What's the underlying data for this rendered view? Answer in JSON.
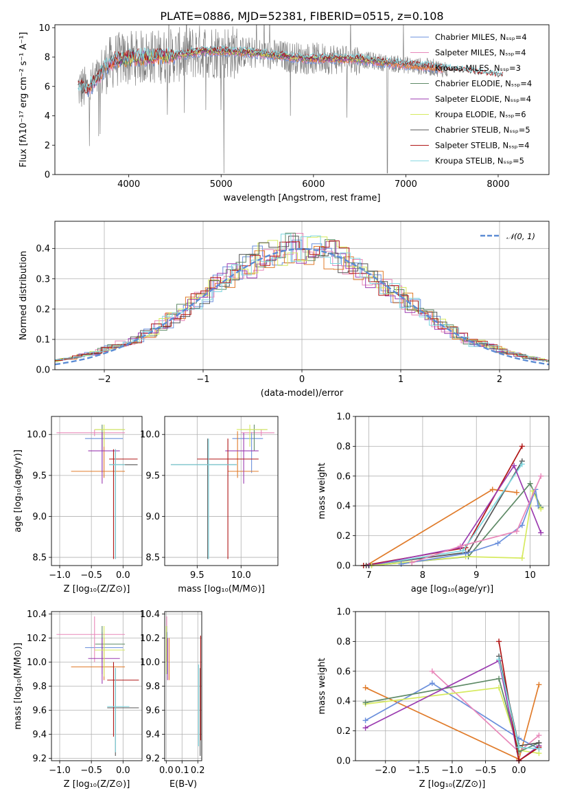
{
  "title": "PLATE=0886, MJD=52381, FIBERID=0515, z=0.108",
  "colors": {
    "chabrier_miles": "#6a8fdc",
    "salpeter_miles": "#e887b9",
    "kroupa_miles": "#e07b2a",
    "chabrier_elodie": "#5e8a66",
    "salpeter_elodie": "#9b3bb0",
    "kroupa_elodie": "#d6ea5e",
    "chabrier_stelib": "#555555",
    "salpeter_stelib": "#b01515",
    "kroupa_stelib": "#7fd7e0",
    "data": "#808080",
    "normal": "#5b8bd4"
  },
  "chart_data": [
    {
      "id": "spectrum",
      "type": "line",
      "xlabel": "wavelength [Angstrom, rest frame]",
      "ylabel": "Flux [fλ10⁻¹⁷ erg cm⁻² s⁻¹ A⁻¹]",
      "xlim": [
        3200,
        8550
      ],
      "ylim": [
        0,
        10.2
      ],
      "xticks": [
        "4000",
        "5000",
        "6000",
        "7000",
        "8000"
      ],
      "yticks": [
        "0",
        "2",
        "4",
        "6",
        "8",
        "10"
      ],
      "grid": false,
      "legend_position": "top-right",
      "legend": [
        "Chabrier MILES, Nₛₛₚ=4",
        "Salpeter MILES, Nₛₛₚ=4",
        "Kroupa MILES, Nₛₛₚ=3",
        "Chabrier ELODIE, Nₛₛₚ=4",
        "Salpeter ELODIE, Nₛₛₚ=4",
        "Kroupa ELODIE, Nₛₛₚ=6",
        "Chabrier STELIB, Nₛₛₚ=5",
        "Salpeter STELIB, Nₛₛₚ=4",
        "Kroupa STELIB, Nₛₛₚ=5"
      ],
      "continuum": {
        "x": [
          3450,
          3550,
          3650,
          3750,
          3850,
          4000,
          4200,
          4500,
          4800,
          5000,
          5300,
          5600,
          5900,
          6200,
          6500,
          6800,
          7100,
          7300,
          7500,
          7700,
          8000,
          8300
        ],
        "y": [
          5.9,
          5.8,
          6.4,
          7.3,
          7.8,
          7.9,
          8.0,
          8.1,
          8.4,
          8.4,
          8.3,
          8.1,
          7.9,
          7.9,
          7.85,
          7.6,
          7.4,
          7.3,
          7.1,
          6.95,
          6.7,
          6.5
        ]
      }
    },
    {
      "id": "residuals",
      "type": "histogram",
      "xlabel": "(data-model)/error",
      "ylabel": "Normed distribution",
      "xlim": [
        -2.5,
        2.5
      ],
      "ylim": [
        0,
        0.49
      ],
      "xticks": [
        "−2",
        "−1",
        "0",
        "1",
        "2"
      ],
      "yticks": [
        "0.0",
        "0.1",
        "0.2",
        "0.3",
        "0.4"
      ],
      "grid": true,
      "legend": [
        "𝒩(0, 1)"
      ],
      "bin_width": 0.1
    },
    {
      "id": "age_vs_Z",
      "type": "errorbar",
      "xlabel": "Z [log₁₀(Z/Z⊙)]",
      "ylabel": "age  [log₁₀(age/yr)]",
      "xlim": [
        -1.13,
        0.3
      ],
      "ylim": [
        8.4,
        10.22
      ],
      "xticks": [
        "−1.0",
        "−0.5",
        "0.0"
      ],
      "yticks": [
        "8.5",
        "9.0",
        "9.5",
        "10.0"
      ],
      "grid": true,
      "points": [
        {
          "c": "chabrier_miles",
          "x": -0.33,
          "xe": [
            -0.6,
            -0.0
          ],
          "y": 9.95,
          "ye": [
            9.53,
            10.03
          ]
        },
        {
          "c": "salpeter_miles",
          "x": -0.45,
          "xe": [
            -1.05,
            0.03
          ],
          "y": 10.02,
          "ye": [
            9.98,
            10.06
          ]
        },
        {
          "c": "kroupa_miles",
          "x": -0.3,
          "xe": [
            -0.82,
            0.03
          ],
          "y": 9.55,
          "ye": [
            9.47,
            10.04
          ]
        },
        {
          "c": "chabrier_elodie",
          "x": -0.33,
          "xe": [
            -0.44,
            0.03
          ],
          "y": 10.06,
          "ye": [
            9.8,
            10.12
          ]
        },
        {
          "c": "salpeter_elodie",
          "x": -0.33,
          "xe": [
            -0.55,
            -0.05
          ],
          "y": 9.8,
          "ye": [
            9.4,
            10.02
          ]
        },
        {
          "c": "kroupa_elodie",
          "x": -0.3,
          "xe": [
            -0.45,
            0.03
          ],
          "y": 10.06,
          "ye": [
            9.85,
            10.12
          ]
        },
        {
          "c": "chabrier_stelib",
          "x": -0.12,
          "xe": [
            -0.22,
            0.23
          ],
          "y": 9.63,
          "ye": [
            8.48,
            9.82
          ]
        },
        {
          "c": "salpeter_stelib",
          "x": -0.15,
          "xe": [
            -0.22,
            0.23
          ],
          "y": 9.7,
          "ye": [
            8.48,
            9.82
          ]
        },
        {
          "c": "kroupa_stelib",
          "x": -0.12,
          "xe": [
            -0.22,
            0.03
          ],
          "y": 9.63,
          "ye": [
            8.48,
            9.82
          ]
        }
      ]
    },
    {
      "id": "age_vs_mass",
      "type": "errorbar",
      "xlabel": "mass [log₁₀(M/M⊙)]",
      "ylabel": "",
      "xlim": [
        9.13,
        10.42
      ],
      "ylim": [
        8.4,
        10.22
      ],
      "xticks": [
        "9.5",
        "10.0"
      ],
      "yticks": [
        "8.5",
        "9.0",
        "9.5",
        "10.0"
      ],
      "grid": true,
      "points": [
        {
          "c": "chabrier_miles",
          "x": 10.12,
          "xe": [
            9.9,
            10.25
          ],
          "y": 9.95,
          "ye": [
            9.53,
            10.03
          ]
        },
        {
          "c": "salpeter_miles",
          "x": 10.23,
          "xe": [
            10.0,
            10.38
          ],
          "y": 10.02,
          "ye": [
            9.98,
            10.06
          ]
        },
        {
          "c": "kroupa_miles",
          "x": 9.96,
          "xe": [
            9.85,
            10.2
          ],
          "y": 9.55,
          "ye": [
            9.47,
            10.04
          ]
        },
        {
          "c": "chabrier_elodie",
          "x": 10.15,
          "xe": [
            10.0,
            10.3
          ],
          "y": 10.06,
          "ye": [
            9.8,
            10.12
          ]
        },
        {
          "c": "salpeter_elodie",
          "x": 10.03,
          "xe": [
            9.82,
            10.2
          ],
          "y": 9.8,
          "ye": [
            9.4,
            10.02
          ]
        },
        {
          "c": "kroupa_elodie",
          "x": 10.1,
          "xe": [
            9.95,
            10.3
          ],
          "y": 10.06,
          "ye": [
            9.85,
            10.12
          ]
        },
        {
          "c": "chabrier_stelib",
          "x": 9.62,
          "xe": [
            9.2,
            9.95
          ],
          "y": 9.63,
          "ye": [
            8.48,
            9.95
          ]
        },
        {
          "c": "salpeter_stelib",
          "x": 9.85,
          "xe": [
            9.5,
            10.2
          ],
          "y": 9.7,
          "ye": [
            8.48,
            9.95
          ]
        },
        {
          "c": "kroupa_stelib",
          "x": 9.63,
          "xe": [
            9.2,
            9.95
          ],
          "y": 9.63,
          "ye": [
            8.48,
            9.95
          ]
        }
      ]
    },
    {
      "id": "massweight_vs_age",
      "type": "line",
      "xlabel": "age  [log₁₀(age/yr)]",
      "ylabel": "mass weight",
      "xlim": [
        6.75,
        10.35
      ],
      "ylim": [
        0,
        1.0
      ],
      "xticks": [
        "7",
        "8",
        "9",
        "10"
      ],
      "yticks": [
        "0.0",
        "0.2",
        "0.4",
        "0.6",
        "0.8",
        "1.0"
      ],
      "grid": true,
      "series": [
        {
          "c": "kroupa_miles",
          "x": [
            6.95,
            9.3,
            9.75
          ],
          "y": [
            0.0,
            0.51,
            0.49
          ]
        },
        {
          "c": "salpeter_stelib",
          "x": [
            6.9,
            8.8,
            9.85
          ],
          "y": [
            0.0,
            0.12,
            0.8
          ]
        },
        {
          "c": "chabrier_stelib",
          "x": [
            6.95,
            8.85,
            9.85
          ],
          "y": [
            0.0,
            0.09,
            0.7
          ]
        },
        {
          "c": "kroupa_stelib",
          "x": [
            7.0,
            8.75,
            9.85
          ],
          "y": [
            0.0,
            0.1,
            0.68
          ]
        },
        {
          "c": "salpeter_elodie",
          "x": [
            7.0,
            8.7,
            9.7,
            10.2
          ],
          "y": [
            0.0,
            0.12,
            0.67,
            0.22
          ]
        },
        {
          "c": "chabrier_elodie",
          "x": [
            7.05,
            8.85,
            10.0,
            10.2
          ],
          "y": [
            0.0,
            0.06,
            0.55,
            0.39
          ]
        },
        {
          "c": "kroupa_elodie",
          "x": [
            7.05,
            8.8,
            9.85,
            10.05,
            10.2
          ],
          "y": [
            0.0,
            0.06,
            0.05,
            0.5,
            0.38
          ]
        },
        {
          "c": "chabrier_miles",
          "x": [
            7.6,
            8.8,
            9.4,
            9.85,
            10.1,
            10.15
          ],
          "y": [
            0.01,
            0.08,
            0.15,
            0.27,
            0.51,
            0.4
          ]
        },
        {
          "c": "salpeter_miles",
          "x": [
            7.8,
            8.7,
            9.75,
            10.2
          ],
          "y": [
            0.02,
            0.13,
            0.23,
            0.6
          ]
        }
      ]
    },
    {
      "id": "mass_vs_Z",
      "type": "errorbar",
      "xlabel": "Z [log₁₀(Z/Z⊙)]",
      "ylabel": "mass [log₁₀(M/M⊙)]",
      "xlim": [
        -1.13,
        0.3
      ],
      "ylim": [
        9.18,
        10.42
      ],
      "xticks": [
        "−1.0",
        "−0.5",
        "0.0"
      ],
      "yticks": [
        "9.2",
        "9.4",
        "9.6",
        "9.8",
        "10.0",
        "10.2",
        "10.4"
      ],
      "grid": true,
      "points": [
        {
          "c": "chabrier_miles",
          "x": -0.33,
          "xe": [
            -0.6,
            -0.0
          ],
          "y": 10.12,
          "ye": [
            9.9,
            10.25
          ]
        },
        {
          "c": "salpeter_miles",
          "x": -0.45,
          "xe": [
            -1.05,
            0.03
          ],
          "y": 10.23,
          "ye": [
            10.0,
            10.38
          ]
        },
        {
          "c": "kroupa_miles",
          "x": -0.3,
          "xe": [
            -0.82,
            0.03
          ],
          "y": 9.96,
          "ye": [
            9.85,
            10.2
          ]
        },
        {
          "c": "chabrier_elodie",
          "x": -0.33,
          "xe": [
            -0.44,
            0.03
          ],
          "y": 10.15,
          "ye": [
            10.0,
            10.3
          ]
        },
        {
          "c": "salpeter_elodie",
          "x": -0.33,
          "xe": [
            -0.55,
            -0.05
          ],
          "y": 10.03,
          "ye": [
            9.82,
            10.2
          ]
        },
        {
          "c": "kroupa_elodie",
          "x": -0.3,
          "xe": [
            -0.45,
            0.03
          ],
          "y": 10.1,
          "ye": [
            9.88,
            10.3
          ]
        },
        {
          "c": "chabrier_stelib",
          "x": -0.12,
          "xe": [
            -0.25,
            0.25
          ],
          "y": 9.62,
          "ye": [
            9.22,
            9.95
          ]
        },
        {
          "c": "salpeter_stelib",
          "x": -0.15,
          "xe": [
            -0.25,
            0.25
          ],
          "y": 9.85,
          "ye": [
            9.38,
            10.0
          ]
        },
        {
          "c": "kroupa_stelib",
          "x": -0.12,
          "xe": [
            -0.25,
            0.1
          ],
          "y": 9.63,
          "ye": [
            9.25,
            9.95
          ]
        }
      ]
    },
    {
      "id": "mass_vs_ebv",
      "type": "errorbar",
      "xlabel": "E(B-V)",
      "ylabel": "",
      "xlim": [
        -0.01,
        0.225
      ],
      "ylim": [
        9.18,
        10.42
      ],
      "xticks": [
        "0.0",
        "0.1",
        "0.2"
      ],
      "yticks": [
        "9.2",
        "9.4",
        "9.6",
        "9.8",
        "10.0",
        "10.2",
        "10.4"
      ],
      "grid": true,
      "points": [
        {
          "c": "chabrier_miles",
          "x": 0.005,
          "xe": [
            0.005,
            0.005
          ],
          "y": 10.12,
          "ye": [
            9.9,
            10.25
          ]
        },
        {
          "c": "salpeter_miles",
          "x": 0.003,
          "xe": [
            0.003,
            0.003
          ],
          "y": 10.23,
          "ye": [
            10.0,
            10.38
          ]
        },
        {
          "c": "kroupa_miles",
          "x": 0.018,
          "xe": [
            0.018,
            0.018
          ],
          "y": 9.96,
          "ye": [
            9.85,
            10.2
          ]
        },
        {
          "c": "chabrier_elodie",
          "x": 0.002,
          "xe": [
            0.002,
            0.002
          ],
          "y": 10.15,
          "ye": [
            10.0,
            10.3
          ]
        },
        {
          "c": "salpeter_elodie",
          "x": 0.008,
          "xe": [
            0.008,
            0.008
          ],
          "y": 10.03,
          "ye": [
            9.85,
            10.2
          ]
        },
        {
          "c": "kroupa_elodie",
          "x": 0.0,
          "xe": [
            0.0,
            0.0
          ],
          "y": 10.1,
          "ye": [
            9.9,
            10.3
          ]
        },
        {
          "c": "chabrier_stelib",
          "x": 0.215,
          "xe": [
            0.215,
            0.215
          ],
          "y": 9.62,
          "ye": [
            9.22,
            9.95
          ]
        },
        {
          "c": "salpeter_stelib",
          "x": 0.218,
          "xe": [
            0.218,
            0.218
          ],
          "y": 9.85,
          "ye": [
            9.35,
            10.22
          ]
        },
        {
          "c": "kroupa_stelib",
          "x": 0.205,
          "xe": [
            0.205,
            0.205
          ],
          "y": 9.63,
          "ye": [
            9.3,
            9.98
          ]
        }
      ]
    },
    {
      "id": "massweight_vs_Z",
      "type": "line",
      "xlabel": "Z [log₁₀(Z/Z⊙)]",
      "ylabel": "mass weight",
      "xlim": [
        -2.45,
        0.45
      ],
      "ylim": [
        0,
        1.0
      ],
      "xticks": [
        "−2.0",
        "−1.5",
        "−1.0",
        "−0.5",
        "0.0"
      ],
      "yticks": [
        "0.0",
        "0.2",
        "0.4",
        "0.6",
        "0.8",
        "1.0"
      ],
      "grid": true,
      "series": [
        {
          "c": "kroupa_miles",
          "x": [
            -2.3,
            0.0,
            0.3
          ],
          "y": [
            0.49,
            0.01,
            0.51
          ]
        },
        {
          "c": "chabrier_miles",
          "x": [
            -2.3,
            -1.3,
            0.0,
            0.3
          ],
          "y": [
            0.27,
            0.52,
            0.15,
            0.08
          ]
        },
        {
          "c": "salpeter_miles",
          "x": [
            -1.3,
            0.0,
            0.3
          ],
          "y": [
            0.6,
            0.06,
            0.17
          ]
        },
        {
          "c": "kroupa_elodie",
          "x": [
            -2.3,
            -0.3,
            0.0,
            0.3
          ],
          "y": [
            0.38,
            0.49,
            0.07,
            0.05
          ]
        },
        {
          "c": "chabrier_elodie",
          "x": [
            -2.3,
            -0.3,
            0.0,
            0.3
          ],
          "y": [
            0.39,
            0.55,
            0.06,
            0.12
          ]
        },
        {
          "c": "salpeter_elodie",
          "x": [
            -2.3,
            -0.3,
            0.0,
            0.3
          ],
          "y": [
            0.22,
            0.67,
            0.0,
            0.1
          ]
        },
        {
          "c": "salpeter_stelib",
          "x": [
            -0.3,
            0.0,
            0.3
          ],
          "y": [
            0.8,
            0.0,
            0.09
          ]
        },
        {
          "c": "chabrier_stelib",
          "x": [
            -0.3,
            0.0,
            0.3
          ],
          "y": [
            0.7,
            0.1,
            0.12
          ]
        },
        {
          "c": "kroupa_stelib",
          "x": [
            -0.3,
            0.0,
            0.3
          ],
          "y": [
            0.68,
            0.09,
            0.08
          ]
        }
      ]
    }
  ]
}
